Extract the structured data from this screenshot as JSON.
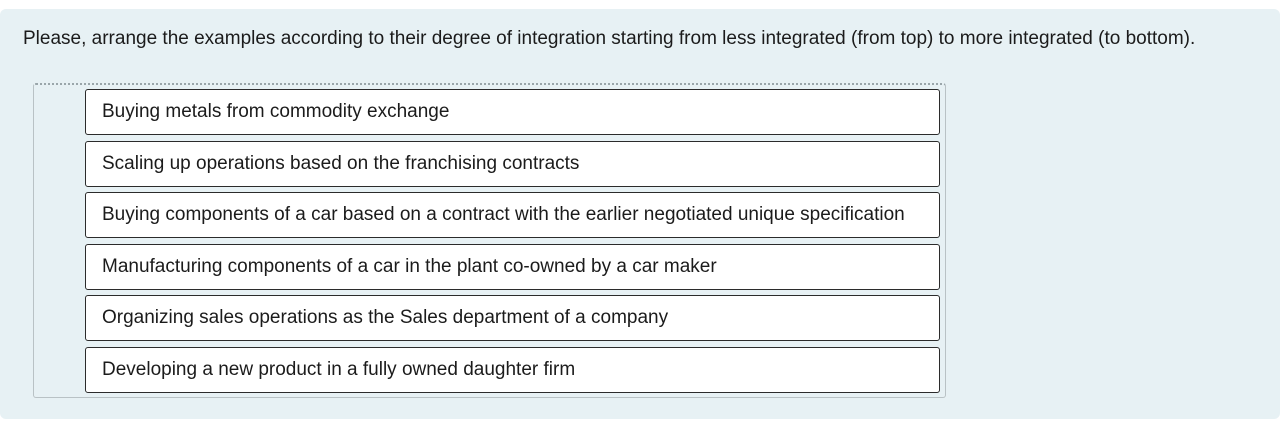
{
  "question": {
    "prompt": "Please, arrange the examples according to their degree of integration starting from less integrated (from top) to more integrated (to bottom).",
    "items": [
      "Buying metals from commodity exchange",
      "Scaling up operations based on the franchising contracts",
      "Buying components of a car based on a contract with the earlier negotiated unique specification",
      "Manufacturing components of a car in the plant co-owned by a car maker",
      "Organizing sales operations as the Sales department of a company",
      "Developing a new product in a fully owned daughter firm"
    ]
  },
  "colors": {
    "panel_background": "#e7f1f4",
    "item_background": "#ffffff",
    "item_border": "#2b2b2b",
    "text": "#1b1b1b"
  }
}
